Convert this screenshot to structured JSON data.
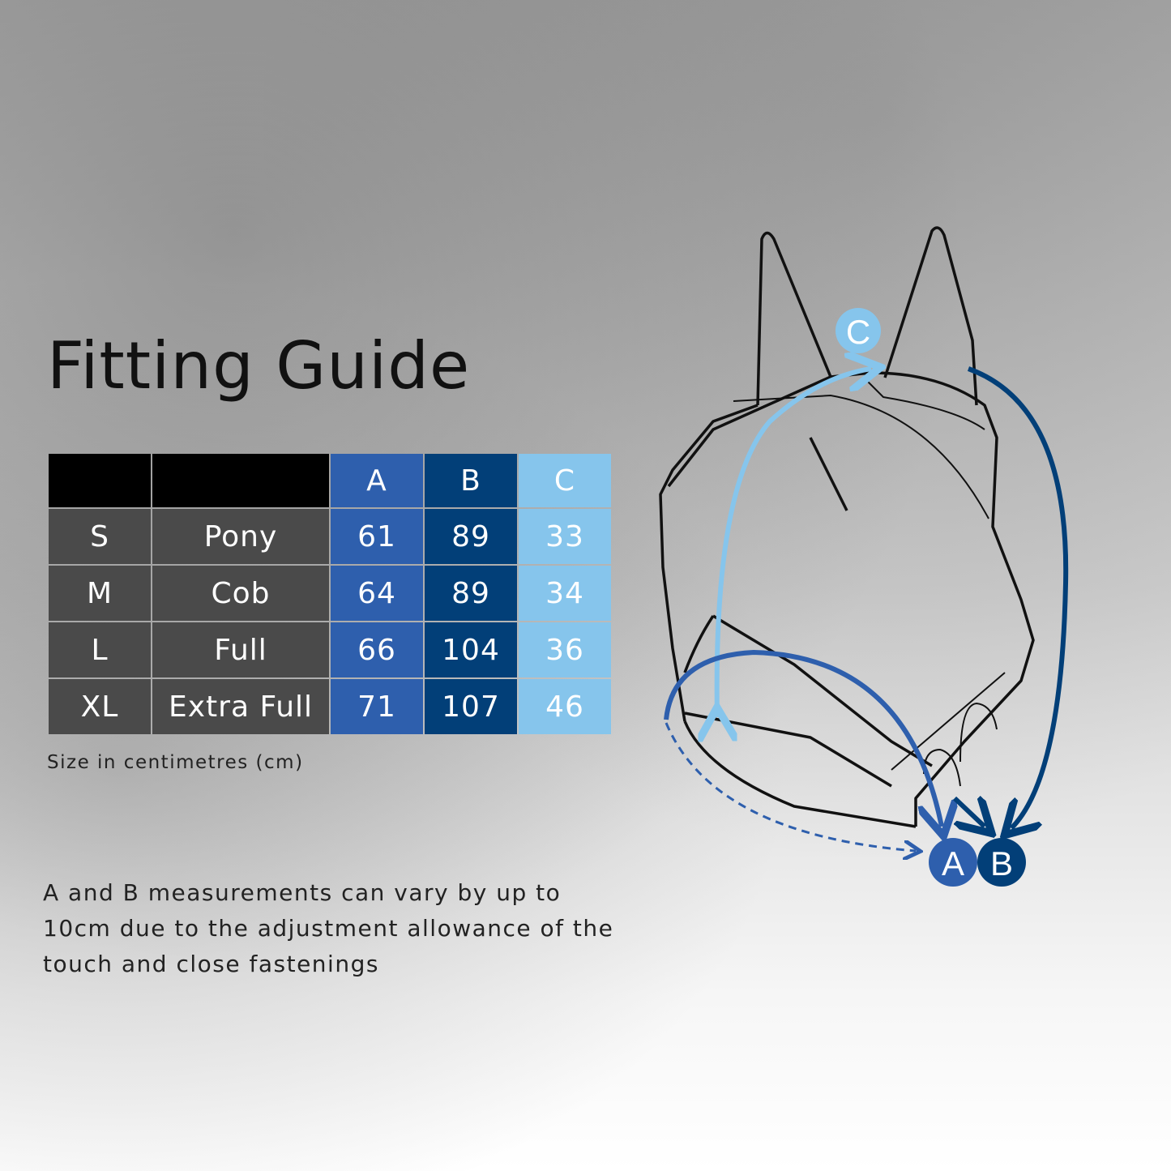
{
  "title": "Fitting Guide",
  "table": {
    "headers": [
      "",
      "",
      "A",
      "B",
      "C"
    ],
    "rows": [
      [
        "S",
        "Pony",
        "61",
        "89",
        "33"
      ],
      [
        "M",
        "Cob",
        "64",
        "89",
        "34"
      ],
      [
        "L",
        "Full",
        "66",
        "104",
        "36"
      ],
      [
        "XL",
        "Extra Full",
        "71",
        "107",
        "46"
      ]
    ]
  },
  "unit_note": "Size in centimetres (cm)",
  "disclaimer": [
    "A and B measurements can vary by up to",
    "10cm due to the adjustment allowance of the",
    "touch and close fastenings"
  ],
  "diagram": {
    "labels": {
      "a": "A",
      "b": "B",
      "c": "C"
    }
  },
  "colors": {
    "A": "#2e5fad",
    "B": "#023f78",
    "C": "#86c5ec",
    "size_cells": "#4a4a4a",
    "header": "#000000"
  }
}
